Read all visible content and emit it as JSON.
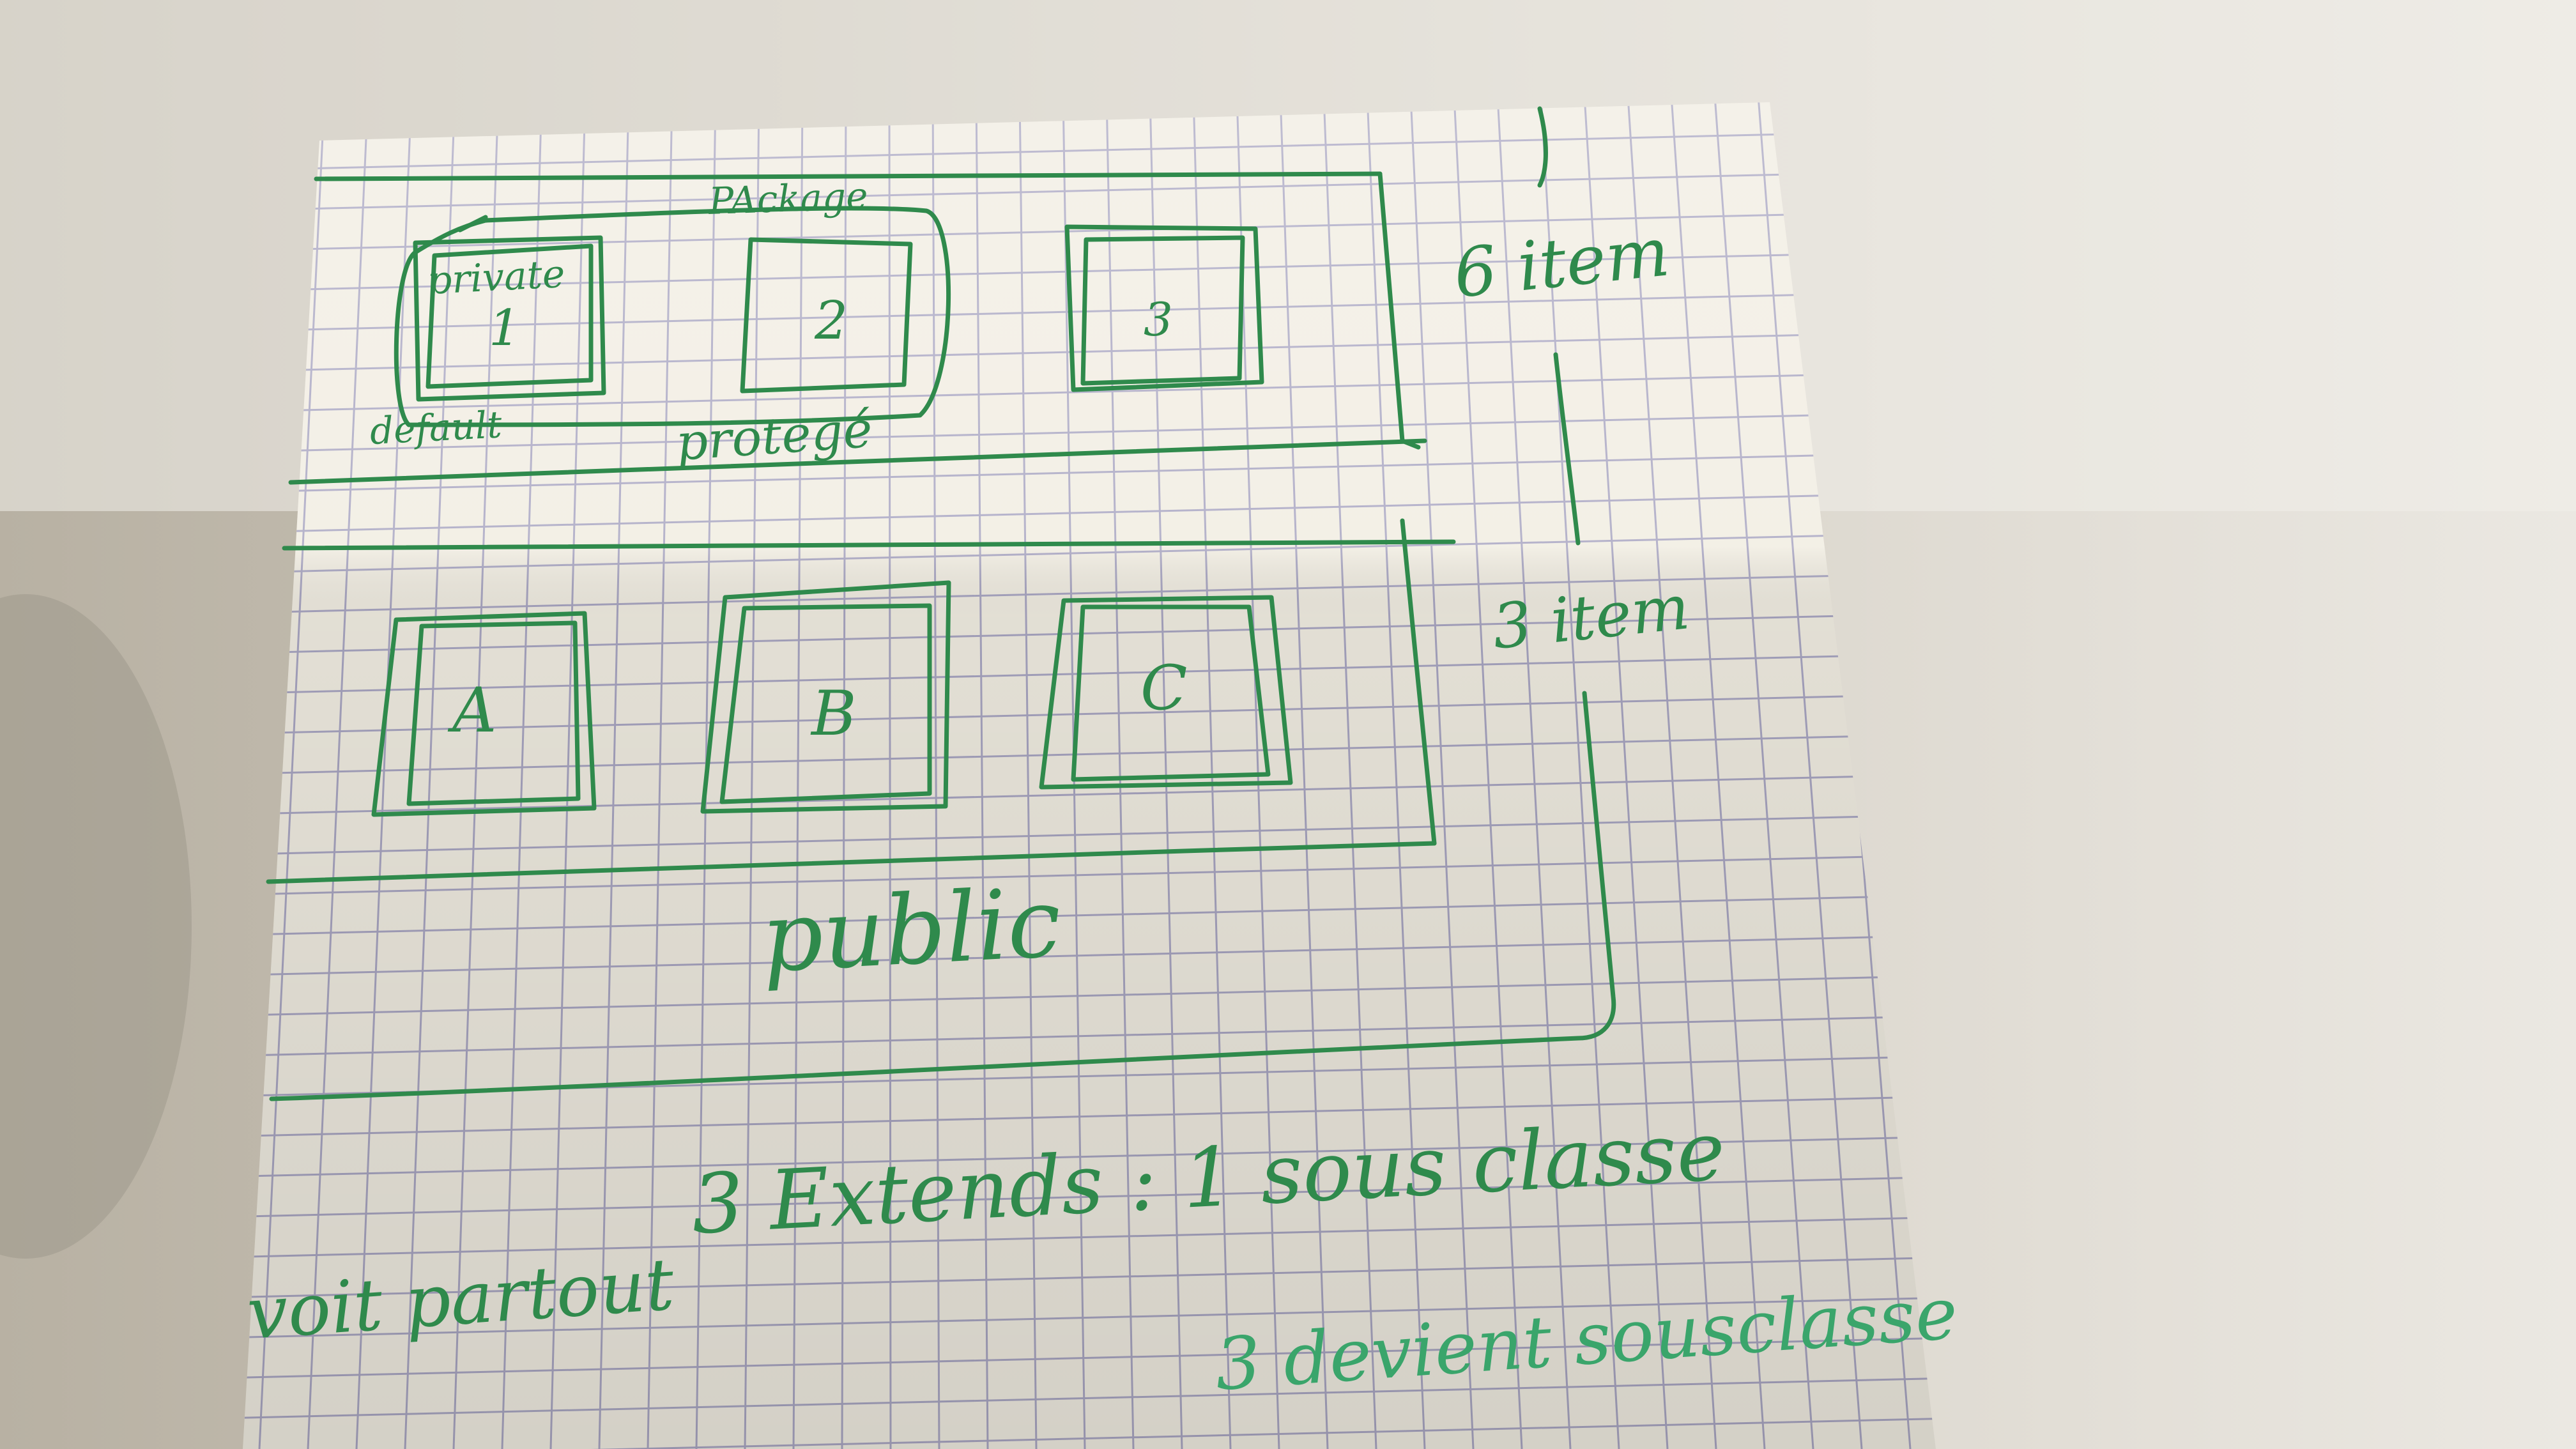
{
  "colors": {
    "ink": "#2f8a4c",
    "ink_light": "#3aa56b",
    "paper": "#f1ede2",
    "grid": "#a9a6c2",
    "wall_light": "#e9e6df",
    "shadow": "#b9b3a6"
  },
  "notes": {
    "package": "PAckage",
    "private": "private",
    "default": "default",
    "protege": "protegé",
    "public": "public",
    "six_item": "6 item",
    "three_item": "3 item",
    "extends": "3 Extends : 1 sous classe",
    "voit_partout": "voit partout",
    "devient": "3 devient sousclasse"
  },
  "top_row": {
    "boxes": [
      {
        "label": "1"
      },
      {
        "label": "2"
      },
      {
        "label": "3"
      }
    ]
  },
  "bottom_row": {
    "boxes": [
      {
        "label": "A"
      },
      {
        "label": "B"
      },
      {
        "label": "C"
      }
    ]
  }
}
